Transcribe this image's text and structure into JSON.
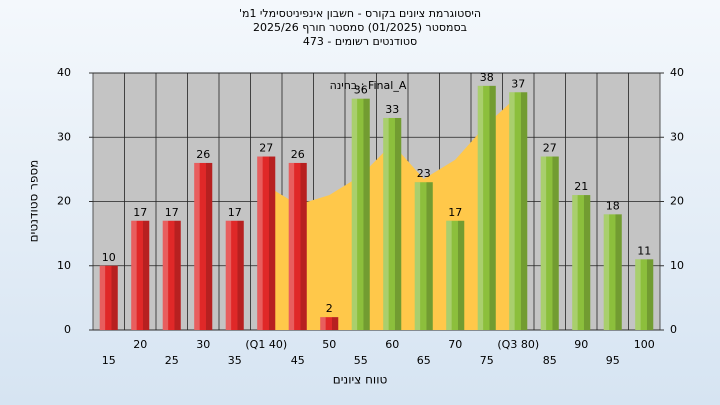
{
  "chart_data": {
    "type": "bar",
    "title": "היסטוגרמת ציונים בקורס - חשבון אינפיניטסימלי 1מ'",
    "subtitle": "בסמסטר (01/2025) סמסטר חורף 2025/26",
    "subtitle2": "סטודנטים רשומים - 473",
    "annotation": "בחינה : Final_A",
    "x_label": "טווח ציונים",
    "y_label": "מספר סטודנטים",
    "categories": [
      "15",
      "20",
      "25",
      "30",
      "35",
      "(Q1 40)",
      "45",
      "50",
      "55",
      "60",
      "65",
      "70",
      "75",
      "(Q3 80)",
      "85",
      "90",
      "95",
      "100"
    ],
    "values": [
      10,
      17,
      17,
      26,
      17,
      27,
      26,
      2,
      36,
      33,
      23,
      17,
      38,
      37,
      27,
      21,
      18,
      11
    ],
    "colors": [
      "#e02828",
      "#e02828",
      "#e02828",
      "#e02828",
      "#e02828",
      "#e02828",
      "#e02828",
      "#e02828",
      "#8cbf3c",
      "#8cbf3c",
      "#8cbf3c",
      "#8cbf3c",
      "#8cbf3c",
      "#8cbf3c",
      "#8cbf3c",
      "#8cbf3c",
      "#8cbf3c",
      "#8cbf3c"
    ],
    "area_values": [
      null,
      null,
      null,
      null,
      null,
      22.5,
      19.5,
      21,
      24,
      29,
      23.5,
      26.5,
      32,
      36.5,
      null,
      null,
      null,
      null
    ],
    "area_color": "#ffc84a",
    "ylim": [
      0,
      40
    ],
    "yticks": [
      0,
      10,
      20,
      30,
      40
    ],
    "y2lim": [
      0,
      40
    ],
    "y2ticks": [
      0,
      10,
      20,
      30,
      40
    ],
    "grid": true
  }
}
